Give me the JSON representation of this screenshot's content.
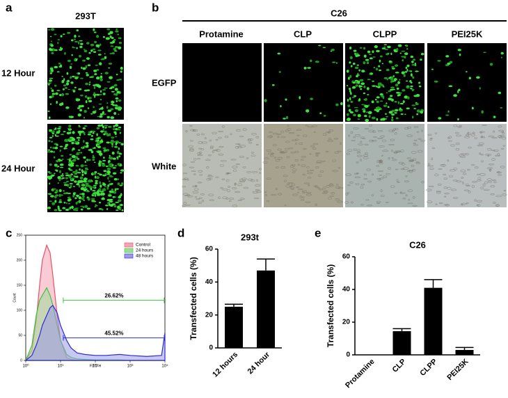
{
  "panel_a": {
    "label": "a",
    "title": "293T",
    "rows": [
      "12 Hour",
      "24 Hour"
    ]
  },
  "panel_b": {
    "label": "b",
    "group": "C26",
    "columns": [
      "Protamine",
      "CLP",
      "CLPP",
      "PEI25K"
    ],
    "rows": [
      "EGFP",
      "White"
    ]
  },
  "chart_data": [
    {
      "type": "area",
      "panel_label": "c",
      "x_label": "FITC-H",
      "y_label": "Count",
      "xscale": "log",
      "x": [
        1,
        1.5,
        2,
        2.5,
        3,
        4,
        5,
        6,
        8,
        10,
        15,
        20,
        30,
        50,
        100,
        200,
        500,
        1000,
        3000,
        8000,
        10000
      ],
      "series": [
        {
          "name": "Control",
          "color": "#e8506a",
          "fill": "#f4a3b3",
          "values": [
            0,
            20,
            80,
            150,
            200,
            230,
            215,
            170,
            90,
            40,
            5,
            2,
            0,
            0,
            0,
            0,
            0,
            0,
            0,
            0,
            0
          ]
        },
        {
          "name": "24 hours",
          "color": "#3cc43c",
          "fill": "#9fdc9a",
          "values": [
            0,
            30,
            90,
            120,
            130,
            145,
            130,
            110,
            70,
            40,
            12,
            6,
            3,
            2,
            1,
            1,
            1,
            0,
            0,
            0,
            0
          ]
        },
        {
          "name": "48 hours",
          "color": "#2b2bd6",
          "fill": "#9a9ae6",
          "values": [
            0,
            10,
            30,
            50,
            70,
            90,
            105,
            110,
            95,
            70,
            40,
            25,
            15,
            12,
            10,
            10,
            12,
            10,
            8,
            10,
            55
          ]
        }
      ],
      "gates": [
        {
          "label": "26.62%",
          "color": "#3cc43c",
          "y": 120,
          "x": [
            12,
            10000
          ]
        },
        {
          "label": "45.52%",
          "color": "#2b2bd6",
          "y": 45,
          "x": [
            12,
            10000
          ]
        }
      ],
      "xlim": [
        1,
        10000
      ],
      "xticks": [
        {
          "value": 1,
          "label": "10⁰"
        },
        {
          "value": 10,
          "label": "10¹"
        },
        {
          "value": 100,
          "label": "10²"
        },
        {
          "value": 1000,
          "label": "10³"
        },
        {
          "value": 10000,
          "label": "10⁴"
        }
      ],
      "ylim": [
        0,
        250
      ],
      "yticks": [
        0,
        50,
        100,
        150,
        200,
        250
      ],
      "legend": "top-right"
    },
    {
      "type": "bar",
      "panel_label": "d",
      "title": "293t",
      "y_label": "Transfected cells (%)",
      "color": "#000000",
      "categories": [
        "12 hours",
        "24 hour"
      ],
      "values": [
        25,
        47
      ],
      "errors": [
        1.5,
        7
      ],
      "ylim": [
        0,
        60
      ],
      "yticks": [
        0,
        20,
        40,
        60
      ]
    },
    {
      "type": "bar",
      "panel_label": "e",
      "title": "C26",
      "y_label": "Transfected cells (%)",
      "color": "#000000",
      "categories": [
        "Protamine",
        "CLP",
        "CLPP",
        "PEI25K"
      ],
      "values": [
        0,
        14.5,
        41,
        3
      ],
      "errors": [
        0,
        1.5,
        5,
        1.5
      ],
      "ylim": [
        0,
        60
      ],
      "yticks": [
        0,
        20,
        40,
        60
      ]
    }
  ]
}
